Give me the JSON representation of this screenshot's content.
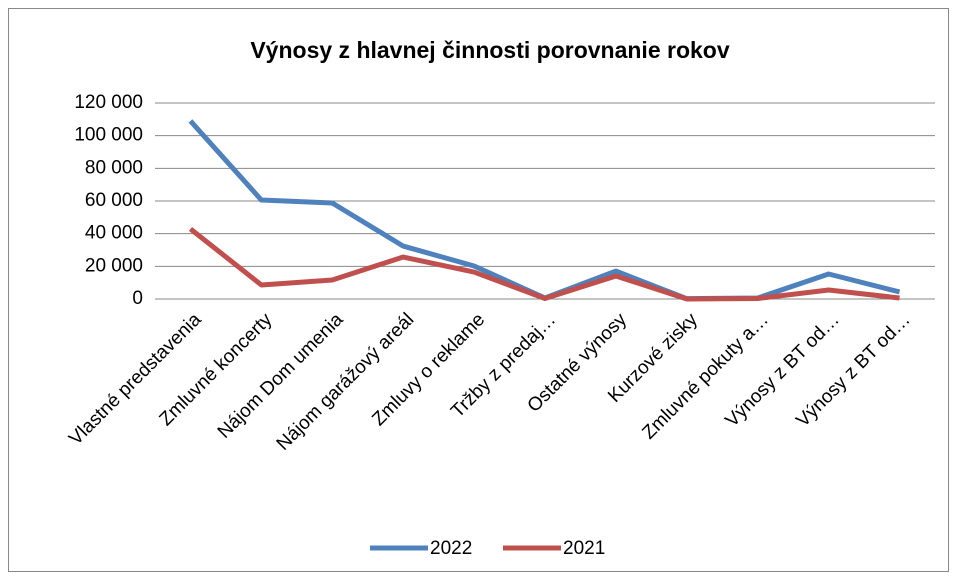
{
  "chart_data": {
    "type": "line",
    "title": "Výnosy z hlavnej činnosti porovnanie rokov",
    "categories": [
      "Vlastné predstavenia",
      "Zmluvné koncerty",
      "Nájom Dom umenia",
      "Nájom garážový areál",
      "Zmluvy o reklame",
      "Tržby z predaj…",
      "Ostatné výnosy",
      "Kurzové zisky",
      "Zmluvné pokuty a…",
      "Výnosy z BT od…",
      "Výnosy z BT od…"
    ],
    "series": [
      {
        "name": "2022",
        "color": "#4f81bd",
        "values": [
          109000,
          60600,
          58800,
          32400,
          20200,
          600,
          17100,
          200,
          600,
          15300,
          4300
        ]
      },
      {
        "name": "2021",
        "color": "#c0504d",
        "values": [
          42900,
          8600,
          11600,
          25700,
          16500,
          300,
          14100,
          0,
          300,
          5500,
          600
        ]
      }
    ],
    "ylim": [
      0,
      120000
    ],
    "yticks": [
      0,
      {
        "value": 20000,
        "label": "20 000"
      },
      {
        "value": 40000,
        "label": "40 000"
      },
      {
        "value": 60000,
        "label": "60 000"
      },
      {
        "value": 80000,
        "label": "80 000"
      },
      {
        "value": 100000,
        "label": "100 000"
      },
      {
        "value": 120000,
        "label": "120 000"
      }
    ],
    "grid": true,
    "legend": "bottom"
  }
}
